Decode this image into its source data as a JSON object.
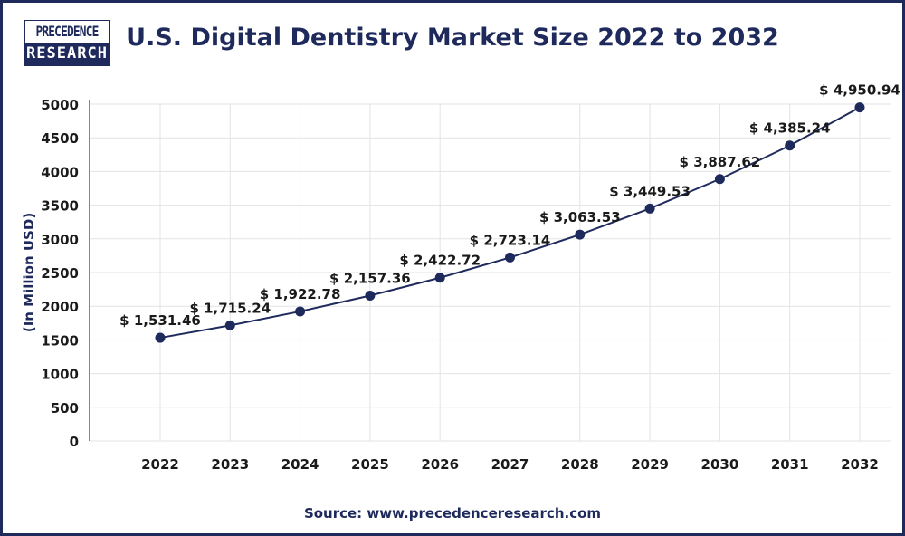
{
  "logo": {
    "line1": "PRECEDENCE",
    "line2": "RESEARCH"
  },
  "source": "Source: www.precedenceresearch.com",
  "colors": {
    "line": "#1f2a5c",
    "grid": "#e3e3e3",
    "text": "#1a1a1a",
    "title": "#1f2a5c"
  },
  "chart_data": {
    "type": "line",
    "title": "U.S. Digital Dentistry Market Size 2022 to 2032",
    "xlabel": "",
    "ylabel": "(In Million USD)",
    "categories": [
      "2022",
      "2023",
      "2024",
      "2025",
      "2026",
      "2027",
      "2028",
      "2029",
      "2030",
      "2031",
      "2032"
    ],
    "values": [
      1531.46,
      1715.24,
      1922.78,
      2157.36,
      2422.72,
      2723.14,
      3063.53,
      3449.53,
      3887.62,
      4385.24,
      4950.94
    ],
    "data_labels": [
      "$ 1,531.46",
      "$ 1,715.24",
      "$ 1,922.78",
      "$ 2,157.36",
      "$ 2,422.72",
      "$ 2,723.14",
      "$ 3,063.53",
      "$ 3,449.53",
      "$ 3,887.62",
      "$ 4,385.24",
      "$ 4,950.94"
    ],
    "yticks": [
      0,
      500,
      1000,
      1500,
      2000,
      2500,
      3000,
      3500,
      4000,
      4500,
      5000
    ],
    "ylim": [
      0,
      5000
    ],
    "grid": true,
    "legend": "none"
  }
}
